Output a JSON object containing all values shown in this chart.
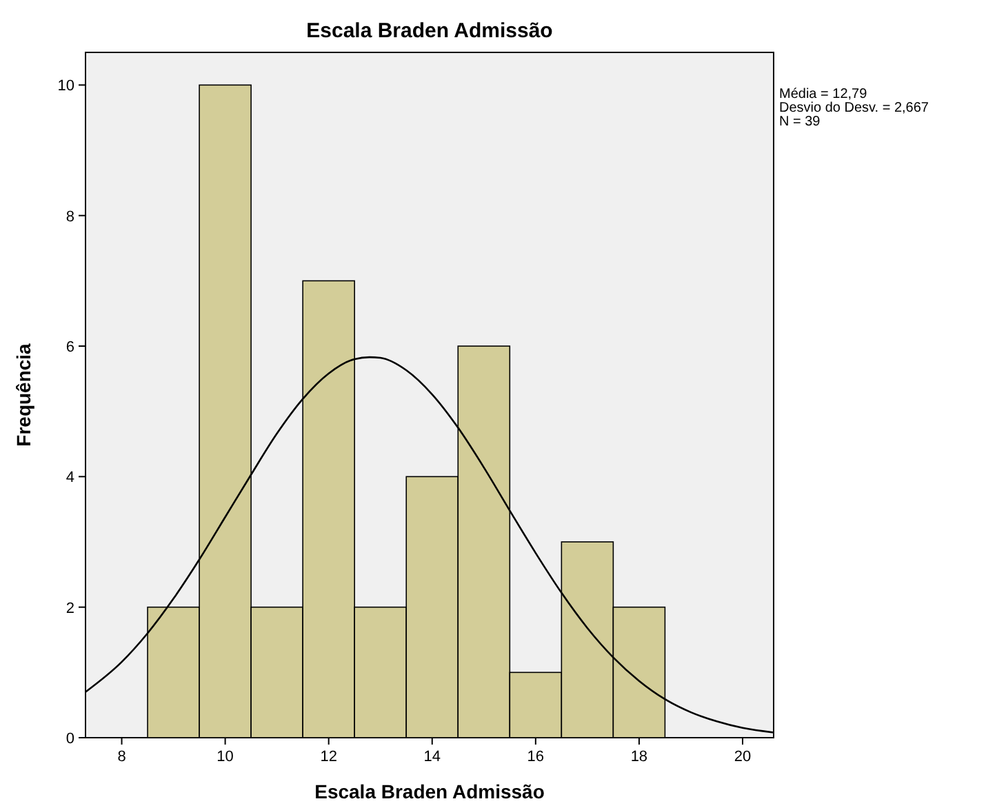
{
  "chart_data": {
    "type": "histogram",
    "title": "Escala Braden Admissão",
    "xlabel": "Escala Braden Admissão",
    "ylabel": "Frequência",
    "bins": [
      8.5,
      9.5,
      10.5,
      11.5,
      12.5,
      13.5,
      14.5,
      15.5,
      16.5,
      17.5,
      18.5
    ],
    "values": [
      2,
      10,
      2,
      7,
      2,
      4,
      6,
      1,
      3,
      2
    ],
    "color": "#d3cd98",
    "xlim": [
      7.3,
      20.6
    ],
    "xticks": [
      8,
      10,
      12,
      14,
      16,
      18,
      20
    ],
    "ylim": [
      0,
      10.5
    ],
    "yticks": [
      0,
      2,
      4,
      6,
      8,
      10
    ],
    "grid": false,
    "marker": "none",
    "line_style": "solid",
    "series": [
      {
        "type": "line",
        "color": "#000000",
        "x": [
          7.3,
          8,
          8.5,
          9,
          9.5,
          10,
          10.5,
          11,
          11.5,
          12,
          12.5,
          12.79,
          13,
          13.5,
          14,
          14.5,
          15,
          15.5,
          16,
          16.5,
          17,
          17.5,
          18,
          18.5,
          19,
          19.5,
          20,
          20.6
        ],
        "values": [
          0.7,
          1.16,
          1.6,
          2.13,
          2.73,
          3.38,
          4.03,
          4.66,
          5.19,
          5.58,
          5.8,
          5.83,
          5.82,
          5.63,
          5.26,
          4.75,
          4.14,
          3.48,
          2.83,
          2.22,
          1.68,
          1.23,
          0.87,
          0.59,
          0.39,
          0.25,
          0.15,
          0.08
        ]
      }
    ],
    "annotations": [
      "Média = 12,79",
      "Desvio do Desv. = 2,667",
      "N = 39"
    ]
  }
}
